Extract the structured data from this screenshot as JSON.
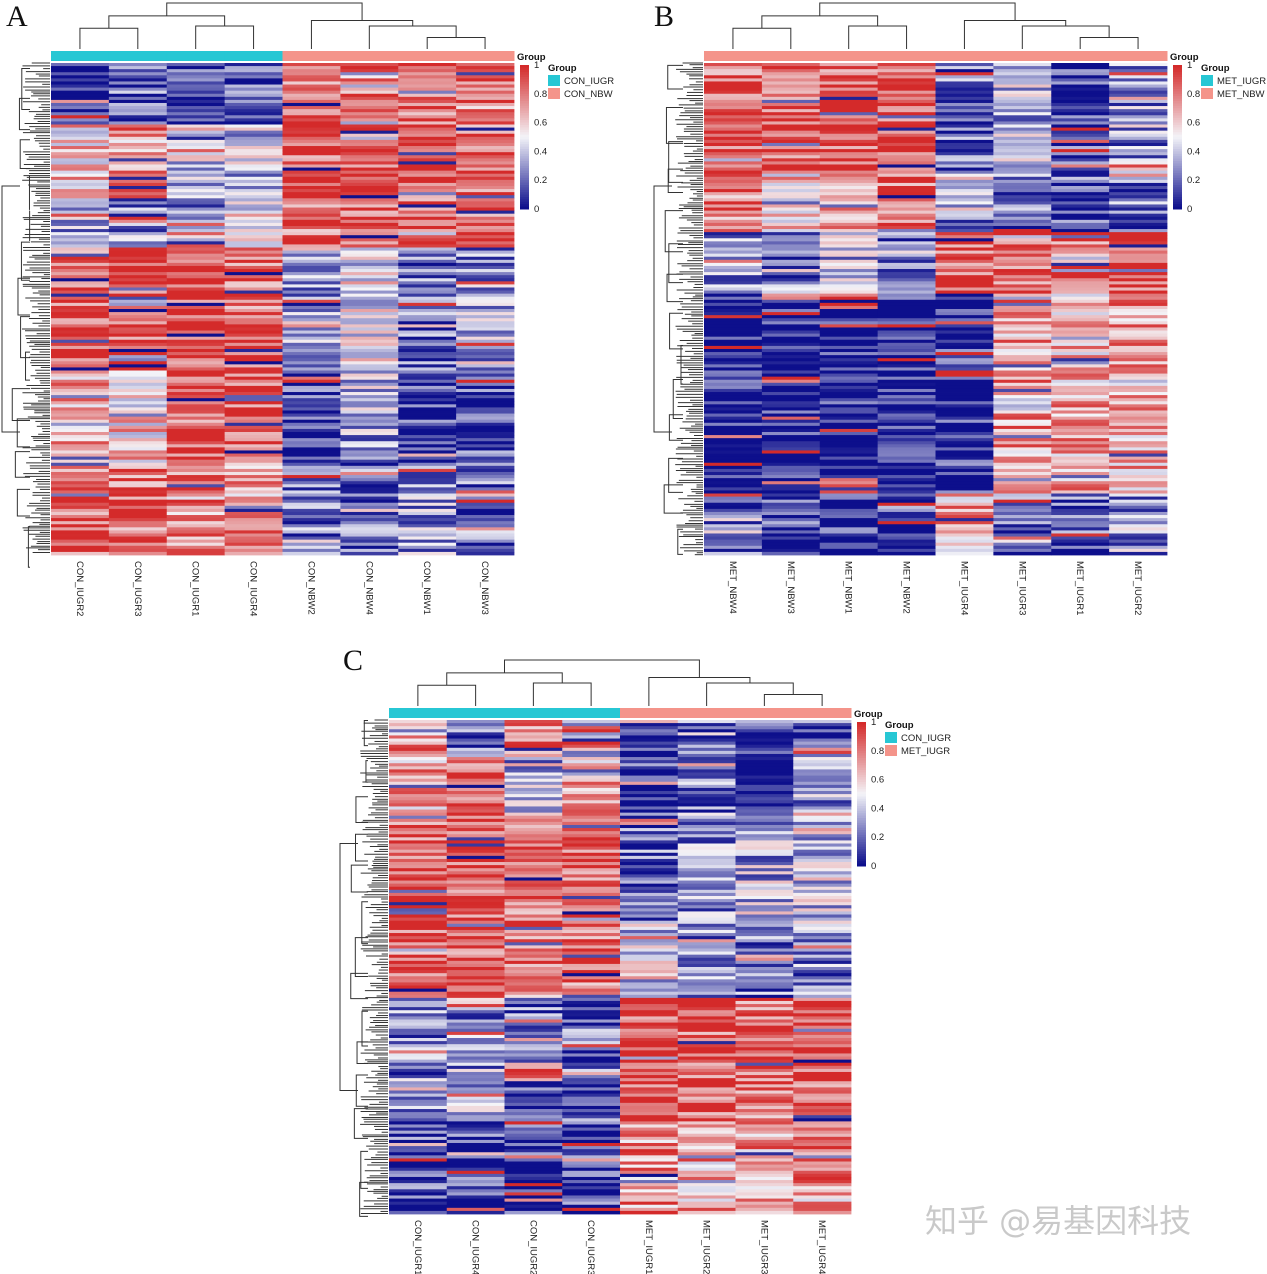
{
  "figure": {
    "watermark": "知乎 @易基因科技"
  },
  "chart_data": [
    {
      "type": "heatmap",
      "panel": "A",
      "columns": [
        "CON_IUGR2",
        "CON_IUGR3",
        "CON_IUGR1",
        "CON_IUGR4",
        "CON_NBW2",
        "CON_NBW4",
        "CON_NBW1",
        "CON_NBW3"
      ],
      "column_groups": [
        "CON_IUGR",
        "CON_IUGR",
        "CON_IUGR",
        "CON_IUGR",
        "CON_NBW",
        "CON_NBW",
        "CON_NBW",
        "CON_NBW"
      ],
      "group_legend": {
        "title": "Group",
        "items": [
          {
            "name": "CON_IUGR",
            "color": "#27c7d4"
          },
          {
            "name": "CON_NBW",
            "color": "#f4948a"
          }
        ]
      },
      "colorbar": {
        "title": "Group",
        "ticks": [
          "1",
          "0.8",
          "0.6",
          "0.4",
          "0.2",
          "0"
        ],
        "min": 0,
        "max": 1,
        "low_color": "#0d0f8c",
        "mid_color": "#f4f4f8",
        "high_color": "#d42a2a"
      },
      "row_blocks": [
        {
          "rows": 20,
          "values": [
            0.12,
            0.18,
            0.08,
            0.22,
            0.82,
            0.78,
            0.85,
            0.8
          ]
        },
        {
          "rows": 24,
          "values": [
            0.6,
            0.72,
            0.3,
            0.4,
            0.9,
            0.88,
            0.92,
            0.85
          ]
        },
        {
          "rows": 16,
          "values": [
            0.35,
            0.25,
            0.3,
            0.55,
            0.85,
            0.9,
            0.88,
            0.82
          ]
        },
        {
          "rows": 40,
          "values": [
            0.88,
            0.9,
            0.92,
            0.86,
            0.25,
            0.5,
            0.2,
            0.3
          ]
        },
        {
          "rows": 30,
          "values": [
            0.7,
            0.6,
            0.88,
            0.9,
            0.1,
            0.35,
            0.08,
            0.12
          ]
        },
        {
          "rows": 30,
          "values": [
            0.84,
            0.82,
            0.78,
            0.7,
            0.22,
            0.18,
            0.3,
            0.2
          ]
        }
      ]
    },
    {
      "type": "heatmap",
      "panel": "B",
      "columns": [
        "MET_NBW4",
        "MET_NBW3",
        "MET_NBW1",
        "MET_NBW2",
        "MET_IUGR4",
        "MET_IUGR3",
        "MET_IUGR1",
        "MET_IUGR2"
      ],
      "column_groups": [
        "MET_NBW",
        "MET_NBW",
        "MET_NBW",
        "MET_NBW",
        "MET_IUGR",
        "MET_IUGR",
        "MET_IUGR",
        "MET_IUGR"
      ],
      "group_legend": {
        "title": "Group",
        "items": [
          {
            "name": "MET_IUGR",
            "color": "#27c7d4"
          },
          {
            "name": "MET_NBW",
            "color": "#f4948a"
          }
        ]
      },
      "colorbar": {
        "title": "Group",
        "ticks": [
          "1",
          "0.8",
          "0.6",
          "0.4",
          "0.2",
          "0"
        ],
        "min": 0,
        "max": 1,
        "low_color": "#0d0f8c",
        "mid_color": "#f4f4f8",
        "high_color": "#d42a2a"
      },
      "row_blocks": [
        {
          "rows": 35,
          "values": [
            0.85,
            0.88,
            0.9,
            0.92,
            0.2,
            0.35,
            0.1,
            0.3
          ]
        },
        {
          "rows": 20,
          "values": [
            0.82,
            0.6,
            0.78,
            0.86,
            0.28,
            0.2,
            0.15,
            0.22
          ]
        },
        {
          "rows": 20,
          "values": [
            0.3,
            0.22,
            0.35,
            0.2,
            0.9,
            0.88,
            0.85,
            0.92
          ]
        },
        {
          "rows": 65,
          "values": [
            0.03,
            0.02,
            0.02,
            0.03,
            0.05,
            0.72,
            0.68,
            0.7
          ]
        },
        {
          "rows": 20,
          "values": [
            0.15,
            0.1,
            0.08,
            0.12,
            0.7,
            0.2,
            0.15,
            0.3
          ]
        }
      ]
    },
    {
      "type": "heatmap",
      "panel": "C",
      "columns": [
        "CON_IUGR1",
        "CON_IUGR4",
        "CON_IUGR2",
        "CON_IUGR3",
        "MET_IUGR1",
        "MET_IUGR2",
        "MET_IUGR3",
        "MET_IUGR4"
      ],
      "column_groups": [
        "CON_IUGR",
        "CON_IUGR",
        "CON_IUGR",
        "CON_IUGR",
        "MET_IUGR",
        "MET_IUGR",
        "MET_IUGR",
        "MET_IUGR"
      ],
      "group_legend": {
        "title": "Group",
        "items": [
          {
            "name": "CON_IUGR",
            "color": "#27c7d4"
          },
          {
            "name": "MET_IUGR",
            "color": "#f4948a"
          }
        ]
      },
      "colorbar": {
        "title": "Group",
        "ticks": [
          "1",
          "0.8",
          "0.6",
          "0.4",
          "0.2",
          "0"
        ],
        "min": 0,
        "max": 1,
        "low_color": "#0d0f8c",
        "mid_color": "#f4f4f8",
        "high_color": "#d42a2a"
      },
      "row_blocks": [
        {
          "rows": 12,
          "values": [
            0.75,
            0.2,
            0.8,
            0.15,
            0.1,
            0.2,
            0.1,
            0.15
          ]
        },
        {
          "rows": 18,
          "values": [
            0.7,
            0.88,
            0.3,
            0.65,
            0.08,
            0.25,
            0.05,
            0.3
          ]
        },
        {
          "rows": 36,
          "values": [
            0.88,
            0.9,
            0.84,
            0.88,
            0.2,
            0.3,
            0.35,
            0.4
          ]
        },
        {
          "rows": 24,
          "values": [
            0.86,
            0.9,
            0.8,
            0.85,
            0.4,
            0.25,
            0.2,
            0.25
          ]
        },
        {
          "rows": 40,
          "values": [
            0.25,
            0.3,
            0.2,
            0.18,
            0.9,
            0.88,
            0.85,
            0.9
          ]
        },
        {
          "rows": 30,
          "values": [
            0.12,
            0.1,
            0.08,
            0.1,
            0.75,
            0.7,
            0.72,
            0.8
          ]
        }
      ]
    }
  ]
}
